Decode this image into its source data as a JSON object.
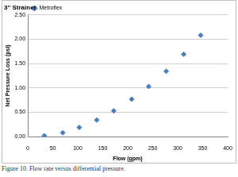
{
  "chart_data": {
    "type": "scatter",
    "title": "3\" Strainer",
    "x_label": "Flow (gpm)",
    "y_label": "Net Pressure Loss (psi)",
    "caption": "Figure 10. Flow rate versus differential pressure.",
    "x": [
      33,
      70,
      103,
      138,
      172,
      208,
      242,
      277,
      312,
      346
    ],
    "series": [
      {
        "name": "Metroflex",
        "color": "#4a7ebb",
        "marker": "diamond",
        "values": [
          0.02,
          0.08,
          0.19,
          0.34,
          0.53,
          0.77,
          1.03,
          1.34,
          1.69,
          2.08
        ]
      }
    ],
    "xlim": [
      0,
      400
    ],
    "xticks": [
      0,
      50,
      100,
      150,
      200,
      250,
      300,
      350,
      400
    ],
    "ylim": [
      0,
      2.5
    ],
    "yticks": [
      {
        "value": 0,
        "label": "0.00"
      },
      {
        "value": 0.5,
        "label": "0.50"
      },
      {
        "value": 1,
        "label": "1.00"
      },
      {
        "value": 1.5,
        "label": "1.50"
      },
      {
        "value": 2,
        "label": "2.00"
      },
      {
        "value": 2.5,
        "label": "2.50"
      }
    ],
    "grid": true,
    "legend": "upper left"
  }
}
